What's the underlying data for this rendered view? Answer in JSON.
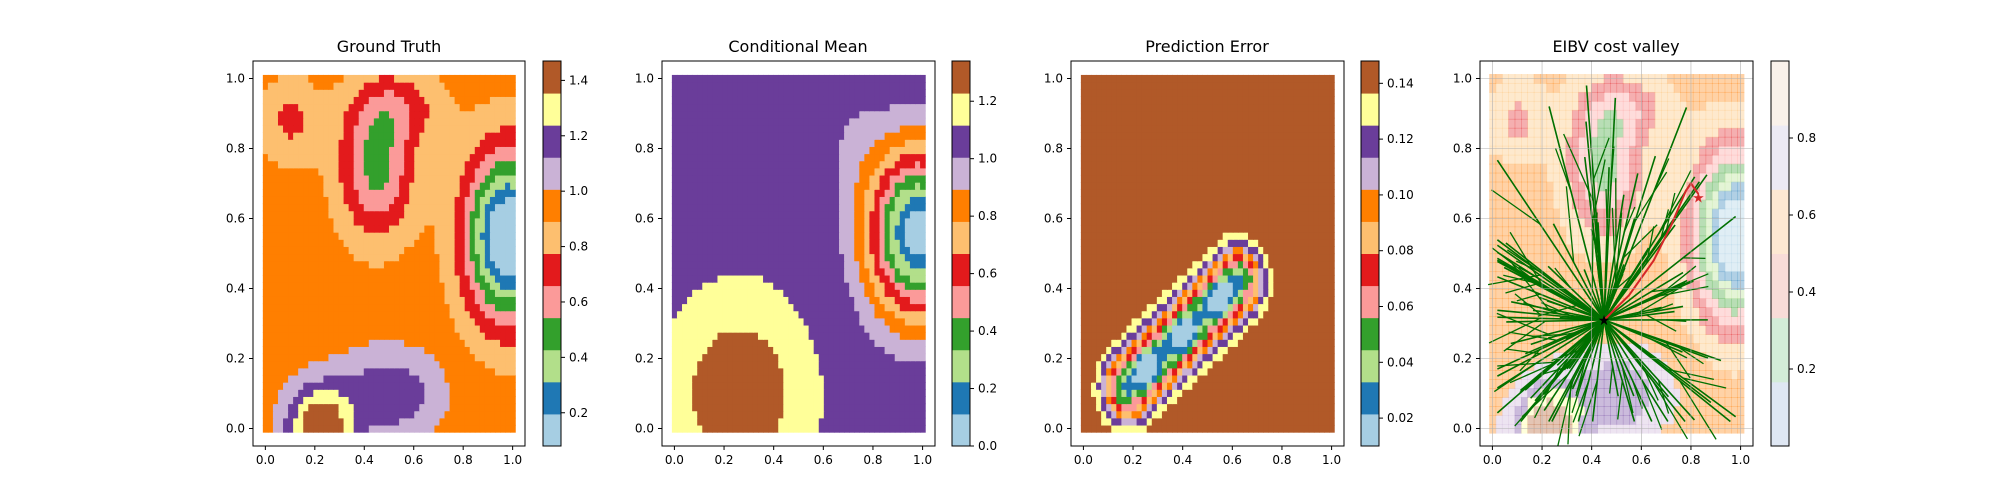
{
  "chart_data": [
    {
      "type": "heatmap",
      "title": "Ground Truth",
      "xlabel": "",
      "ylabel": "",
      "xlim": [
        -0.05,
        1.05
      ],
      "ylim": [
        -0.05,
        1.05
      ],
      "xticks": [
        "0.0",
        "0.2",
        "0.4",
        "0.6",
        "0.8",
        "1.0"
      ],
      "yticks": [
        "0.0",
        "0.2",
        "0.4",
        "0.6",
        "0.8",
        "1.0"
      ],
      "colorbar": {
        "vmin": 0.08,
        "vmax": 1.47,
        "ticks": [
          0.2,
          0.4,
          0.6,
          0.8,
          1.0,
          1.2,
          1.4
        ],
        "tick_labels": [
          "0.2",
          "0.4",
          "0.6",
          "0.8",
          "1.0",
          "1.2",
          "1.4"
        ]
      },
      "field": {
        "base": 0.95,
        "bumps": [
          {
            "x": 0.22,
            "y": 0.0,
            "sx": 0.13,
            "sy": 0.12,
            "a": 0.55
          },
          {
            "x": 0.5,
            "y": 0.1,
            "sx": 0.2,
            "sy": 0.12,
            "a": 0.28
          },
          {
            "x": 0.55,
            "y": 0.92,
            "sx": 0.18,
            "sy": 0.1,
            "a": -0.2
          },
          {
            "x": 0.98,
            "y": 0.55,
            "sx": 0.17,
            "sy": 0.24,
            "a": -0.92
          },
          {
            "x": 0.45,
            "y": 0.75,
            "sx": 0.15,
            "sy": 0.2,
            "a": -0.45
          },
          {
            "x": 0.1,
            "y": 0.88,
            "sx": 0.12,
            "sy": 0.12,
            "a": -0.2
          }
        ]
      }
    },
    {
      "type": "heatmap",
      "title": "Conditional Mean",
      "xlabel": "",
      "ylabel": "",
      "xlim": [
        -0.05,
        1.05
      ],
      "ylim": [
        -0.05,
        1.05
      ],
      "xticks": [
        "0.0",
        "0.2",
        "0.4",
        "0.6",
        "0.8",
        "1.0"
      ],
      "yticks": [
        "0.0",
        "0.2",
        "0.4",
        "0.6",
        "0.8",
        "1.0"
      ],
      "colorbar": {
        "vmin": 0.0,
        "vmax": 1.34,
        "ticks": [
          0.0,
          0.2,
          0.4,
          0.6,
          0.8,
          1.0,
          1.2
        ],
        "tick_labels": [
          "0.0",
          "0.2",
          "0.4",
          "0.6",
          "0.8",
          "1.0",
          "1.2"
        ]
      },
      "field": {
        "base": 1.1,
        "bumps": [
          {
            "x": 0.26,
            "y": 0.1,
            "sx": 0.2,
            "sy": 0.2,
            "a": 0.3
          },
          {
            "x": 0.98,
            "y": 0.56,
            "sx": 0.2,
            "sy": 0.24,
            "a": -1.05
          },
          {
            "x": 0.72,
            "y": 0.82,
            "sx": 0.12,
            "sy": 0.15,
            "a": -0.08
          }
        ]
      }
    },
    {
      "type": "heatmap",
      "title": "Prediction Error",
      "xlabel": "",
      "ylabel": "",
      "xlim": [
        -0.05,
        1.05
      ],
      "ylim": [
        -0.05,
        1.05
      ],
      "xticks": [
        "0.0",
        "0.2",
        "0.4",
        "0.6",
        "0.8",
        "1.0"
      ],
      "yticks": [
        "0.0",
        "0.2",
        "0.4",
        "0.6",
        "0.8",
        "1.0"
      ],
      "colorbar": {
        "vmin": 0.01,
        "vmax": 0.148,
        "ticks": [
          0.02,
          0.04,
          0.06,
          0.08,
          0.1,
          0.12,
          0.14
        ],
        "tick_labels": [
          "0.02",
          "0.04",
          "0.06",
          "0.08",
          "0.10",
          "0.12",
          "0.14"
        ]
      },
      "error_segment": {
        "from": [
          0.18,
          0.12
        ],
        "to": [
          0.62,
          0.42
        ],
        "max": 0.148,
        "min": 0.015,
        "scale": 0.09
      }
    },
    {
      "type": "scatter",
      "title": "EIBV cost valley",
      "xlabel": "",
      "ylabel": "",
      "xlim": [
        -0.05,
        1.05
      ],
      "ylim": [
        -0.05,
        1.05
      ],
      "xticks": [
        "0.0",
        "0.2",
        "0.4",
        "0.6",
        "0.8",
        "1.0"
      ],
      "yticks": [
        "0.0",
        "0.2",
        "0.4",
        "0.6",
        "0.8",
        "1.0"
      ],
      "grid": true,
      "colorbar": {
        "vmin": 0.0,
        "vmax": 1.0,
        "ticks": [
          0.2,
          0.4,
          0.6,
          0.8
        ],
        "tick_labels": [
          "0.2",
          "0.4",
          "0.6",
          "0.8"
        ]
      },
      "start_point": [
        0.45,
        0.31
      ],
      "target_point": [
        0.83,
        0.66
      ],
      "tree_branches": 90,
      "tree_color": "#007000",
      "path_color": "#d62728",
      "best_path": [
        [
          0.45,
          0.31
        ],
        [
          0.55,
          0.38
        ],
        [
          0.65,
          0.48
        ],
        [
          0.72,
          0.58
        ],
        [
          0.78,
          0.68
        ],
        [
          0.8,
          0.7
        ],
        [
          0.83,
          0.67
        ]
      ]
    }
  ],
  "palette": [
    "#a6cee3",
    "#1f78b4",
    "#b2df8a",
    "#33a02c",
    "#fb9a99",
    "#e31a1c",
    "#fdbf6f",
    "#ff7f00",
    "#cab2d6",
    "#6a3d9a",
    "#ffff99",
    "#b15928"
  ],
  "valley_palette": [
    "#dfe7f3",
    "#d3ecd8",
    "#f8dcd8",
    "#fde8d2",
    "#eceaf4",
    "#f9f1ea"
  ]
}
